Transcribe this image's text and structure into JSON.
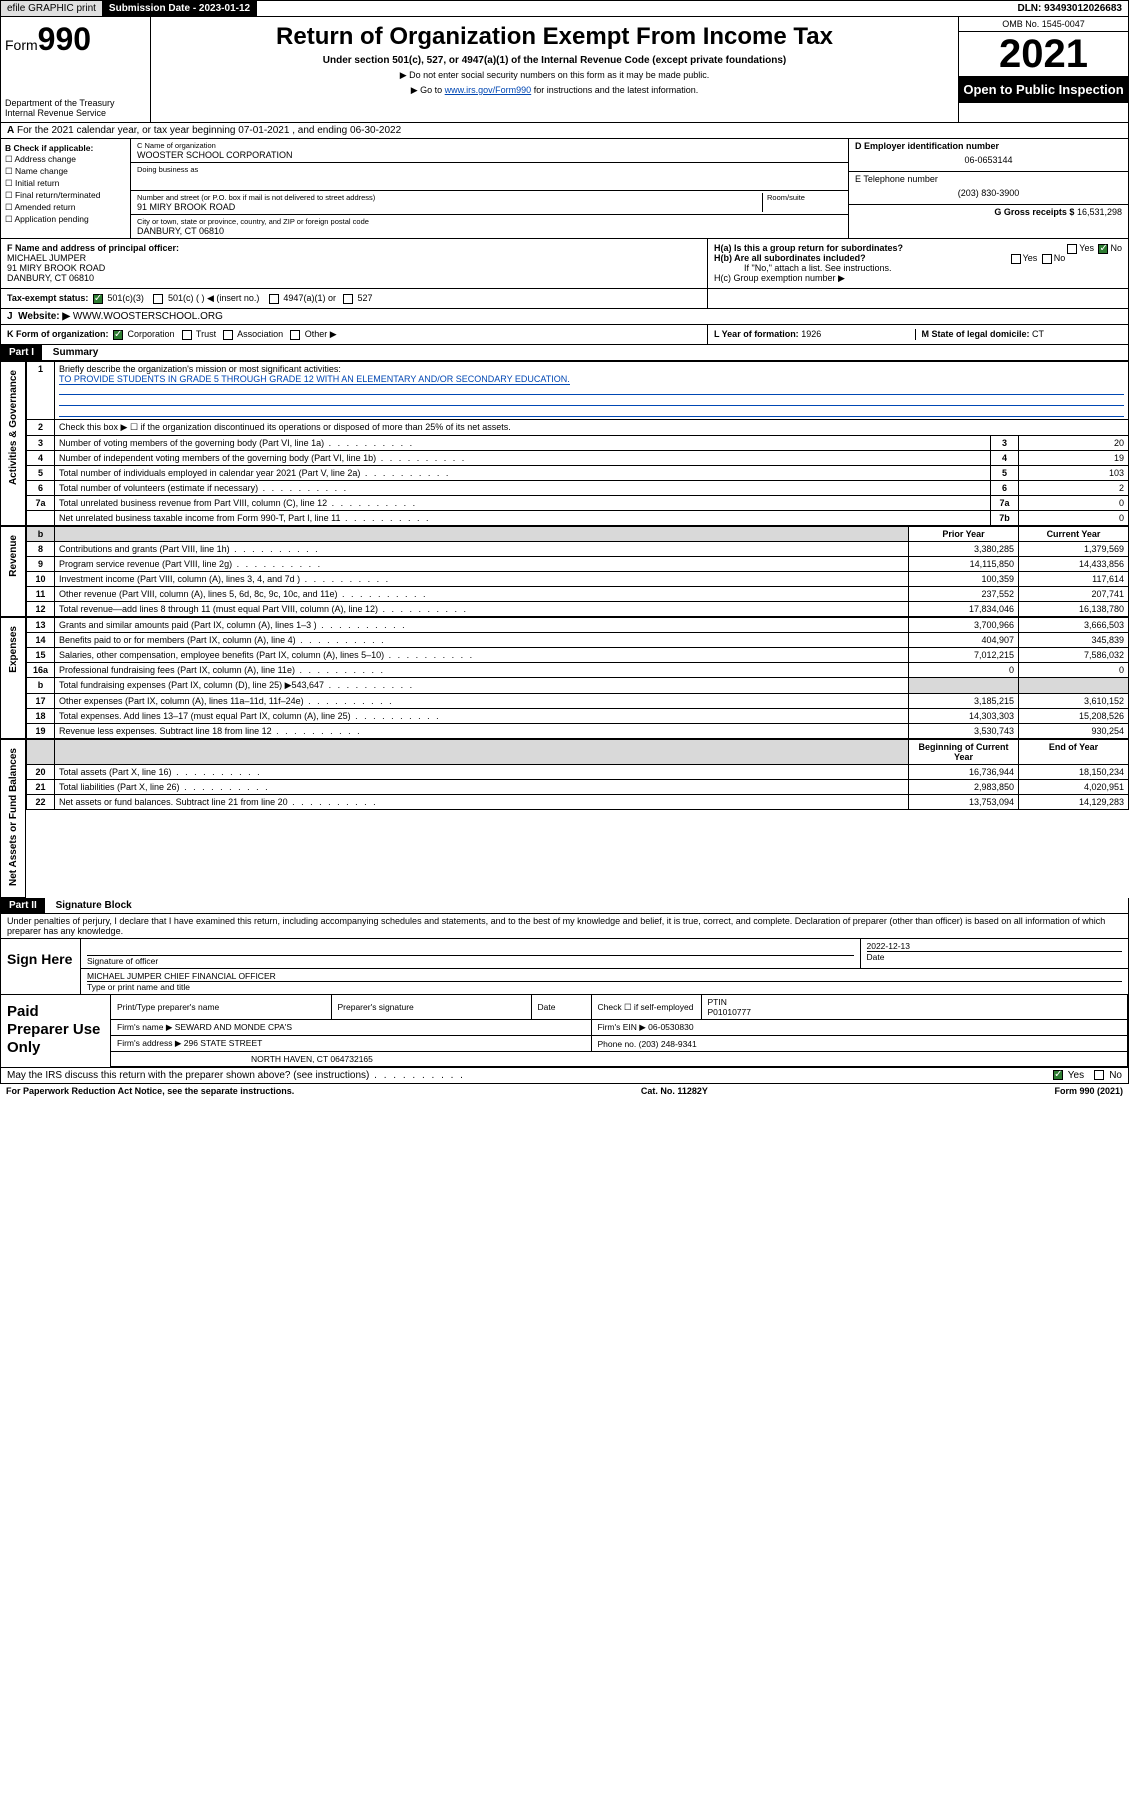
{
  "topbar": {
    "efile": "efile GRAPHIC print",
    "subdate_lbl": "Submission Date - 2023-01-12",
    "dln": "DLN: 93493012026683"
  },
  "header": {
    "form_prefix": "Form",
    "form_num": "990",
    "dept": "Department of the Treasury\nInternal Revenue Service",
    "title": "Return of Organization Exempt From Income Tax",
    "subtitle": "Under section 501(c), 527, or 4947(a)(1) of the Internal Revenue Code (except private foundations)",
    "note1": "▶ Do not enter social security numbers on this form as it may be made public.",
    "note2_pre": "▶ Go to ",
    "note2_link": "www.irs.gov/Form990",
    "note2_post": " for instructions and the latest information.",
    "omb": "OMB No. 1545-0047",
    "year": "2021",
    "open": "Open to Public Inspection"
  },
  "line_a": "For the 2021 calendar year, or tax year beginning 07-01-2021  , and ending 06-30-2022",
  "sec_b": {
    "title": "B Check if applicable:",
    "opts": [
      "Address change",
      "Name change",
      "Initial return",
      "Final return/terminated",
      "Amended return",
      "Application pending"
    ]
  },
  "sec_c": {
    "name_lbl": "C Name of organization",
    "name": "WOOSTER SCHOOL CORPORATION",
    "dba_lbl": "Doing business as",
    "addr_lbl": "Number and street (or P.O. box if mail is not delivered to street address)",
    "room_lbl": "Room/suite",
    "addr": "91 MIRY BROOK ROAD",
    "city_lbl": "City or town, state or province, country, and ZIP or foreign postal code",
    "city": "DANBURY, CT  06810"
  },
  "sec_d": {
    "lbl": "D Employer identification number",
    "val": "06-0653144"
  },
  "sec_e": {
    "lbl": "E Telephone number",
    "val": "(203) 830-3900"
  },
  "sec_g": {
    "lbl": "G Gross receipts $",
    "val": "16,531,298"
  },
  "sec_f": {
    "lbl": "F Name and address of principal officer:",
    "name": "MICHAEL JUMPER",
    "addr1": "91 MIRY BROOK ROAD",
    "addr2": "DANBURY, CT  06810"
  },
  "sec_h": {
    "ha": "H(a)  Is this a group return for subordinates?",
    "hb": "H(b)  Are all subordinates included?",
    "hb_note": "If \"No,\" attach a list. See instructions.",
    "hc": "H(c)  Group exemption number ▶",
    "yes": "Yes",
    "no": "No"
  },
  "sec_i": {
    "lbl": "Tax-exempt status:",
    "o1": "501(c)(3)",
    "o2": "501(c) (   ) ◀ (insert no.)",
    "o3": "4947(a)(1) or",
    "o4": "527"
  },
  "sec_j": {
    "lbl": "Website: ▶",
    "val": "WWW.WOOSTERSCHOOL.ORG"
  },
  "sec_k": {
    "lbl": "K Form of organization:",
    "o1": "Corporation",
    "o2": "Trust",
    "o3": "Association",
    "o4": "Other ▶"
  },
  "sec_l": {
    "lbl": "L Year of formation:",
    "val": "1926"
  },
  "sec_m": {
    "lbl": "M State of legal domicile:",
    "val": "CT"
  },
  "part1": {
    "tag": "Part I",
    "title": "Summary"
  },
  "summary": {
    "l1_lbl": "Briefly describe the organization's mission or most significant activities:",
    "l1_val": "TO PROVIDE STUDENTS IN GRADE 5 THROUGH GRADE 12 WITH AN ELEMENTARY AND/OR SECONDARY EDUCATION.",
    "l2": "Check this box ▶ ☐  if the organization discontinued its operations or disposed of more than 25% of its net assets.",
    "rows_ag": [
      {
        "n": "3",
        "t": "Number of voting members of the governing body (Part VI, line 1a)",
        "rn": "3",
        "v": "20"
      },
      {
        "n": "4",
        "t": "Number of independent voting members of the governing body (Part VI, line 1b)",
        "rn": "4",
        "v": "19"
      },
      {
        "n": "5",
        "t": "Total number of individuals employed in calendar year 2021 (Part V, line 2a)",
        "rn": "5",
        "v": "103"
      },
      {
        "n": "6",
        "t": "Total number of volunteers (estimate if necessary)",
        "rn": "6",
        "v": "2"
      },
      {
        "n": "7a",
        "t": "Total unrelated business revenue from Part VIII, column (C), line 12",
        "rn": "7a",
        "v": "0"
      },
      {
        "n": "",
        "t": "Net unrelated business taxable income from Form 990-T, Part I, line 11",
        "rn": "7b",
        "v": "0"
      }
    ],
    "col_prior": "Prior Year",
    "col_curr": "Current Year",
    "rev": [
      {
        "n": "8",
        "t": "Contributions and grants (Part VIII, line 1h)",
        "p": "3,380,285",
        "c": "1,379,569"
      },
      {
        "n": "9",
        "t": "Program service revenue (Part VIII, line 2g)",
        "p": "14,115,850",
        "c": "14,433,856"
      },
      {
        "n": "10",
        "t": "Investment income (Part VIII, column (A), lines 3, 4, and 7d )",
        "p": "100,359",
        "c": "117,614"
      },
      {
        "n": "11",
        "t": "Other revenue (Part VIII, column (A), lines 5, 6d, 8c, 9c, 10c, and 11e)",
        "p": "237,552",
        "c": "207,741"
      },
      {
        "n": "12",
        "t": "Total revenue—add lines 8 through 11 (must equal Part VIII, column (A), line 12)",
        "p": "17,834,046",
        "c": "16,138,780"
      }
    ],
    "exp": [
      {
        "n": "13",
        "t": "Grants and similar amounts paid (Part IX, column (A), lines 1–3 )",
        "p": "3,700,966",
        "c": "3,666,503"
      },
      {
        "n": "14",
        "t": "Benefits paid to or for members (Part IX, column (A), line 4)",
        "p": "404,907",
        "c": "345,839"
      },
      {
        "n": "15",
        "t": "Salaries, other compensation, employee benefits (Part IX, column (A), lines 5–10)",
        "p": "7,012,215",
        "c": "7,586,032"
      },
      {
        "n": "16a",
        "t": "Professional fundraising fees (Part IX, column (A), line 11e)",
        "p": "0",
        "c": "0"
      },
      {
        "n": "b",
        "t": "Total fundraising expenses (Part IX, column (D), line 25) ▶543,647",
        "p": "",
        "c": "",
        "shade": true
      },
      {
        "n": "17",
        "t": "Other expenses (Part IX, column (A), lines 11a–11d, 11f–24e)",
        "p": "3,185,215",
        "c": "3,610,152"
      },
      {
        "n": "18",
        "t": "Total expenses. Add lines 13–17 (must equal Part IX, column (A), line 25)",
        "p": "14,303,303",
        "c": "15,208,526"
      },
      {
        "n": "19",
        "t": "Revenue less expenses. Subtract line 18 from line 12",
        "p": "3,530,743",
        "c": "930,254"
      }
    ],
    "col_beg": "Beginning of Current Year",
    "col_end": "End of Year",
    "net": [
      {
        "n": "20",
        "t": "Total assets (Part X, line 16)",
        "p": "16,736,944",
        "c": "18,150,234"
      },
      {
        "n": "21",
        "t": "Total liabilities (Part X, line 26)",
        "p": "2,983,850",
        "c": "4,020,951"
      },
      {
        "n": "22",
        "t": "Net assets or fund balances. Subtract line 21 from line 20",
        "p": "13,753,094",
        "c": "14,129,283"
      }
    ],
    "vlabels": {
      "ag": "Activities & Governance",
      "rev": "Revenue",
      "exp": "Expenses",
      "net": "Net Assets or Fund Balances"
    }
  },
  "part2": {
    "tag": "Part II",
    "title": "Signature Block"
  },
  "sig": {
    "decl": "Under penalties of perjury, I declare that I have examined this return, including accompanying schedules and statements, and to the best of my knowledge and belief, it is true, correct, and complete. Declaration of preparer (other than officer) is based on all information of which preparer has any knowledge.",
    "sign_here": "Sign Here",
    "sig_lbl": "Signature of officer",
    "date_lbl": "Date",
    "date": "2022-12-13",
    "name": "MICHAEL JUMPER  CHIEF FINANCIAL OFFICER",
    "name_lbl": "Type or print name and title"
  },
  "paid": {
    "title": "Paid Preparer Use Only",
    "h1": "Print/Type preparer's name",
    "h2": "Preparer's signature",
    "h3": "Date",
    "h4": "Check ☐ if self-employed",
    "h5_lbl": "PTIN",
    "h5": "P01010777",
    "firm_lbl": "Firm's name   ▶",
    "firm": "SEWARD AND MONDE CPA'S",
    "ein_lbl": "Firm's EIN ▶",
    "ein": "06-0530830",
    "addr_lbl": "Firm's address ▶",
    "addr": "296 STATE STREET",
    "addr2": "NORTH HAVEN, CT  064732165",
    "ph_lbl": "Phone no.",
    "ph": "(203) 248-9341"
  },
  "may": {
    "q": "May the IRS discuss this return with the preparer shown above? (see instructions)",
    "yes": "Yes",
    "no": "No"
  },
  "foot": {
    "l": "For Paperwork Reduction Act Notice, see the separate instructions.",
    "m": "Cat. No. 11282Y",
    "r": "Form 990 (2021)"
  }
}
